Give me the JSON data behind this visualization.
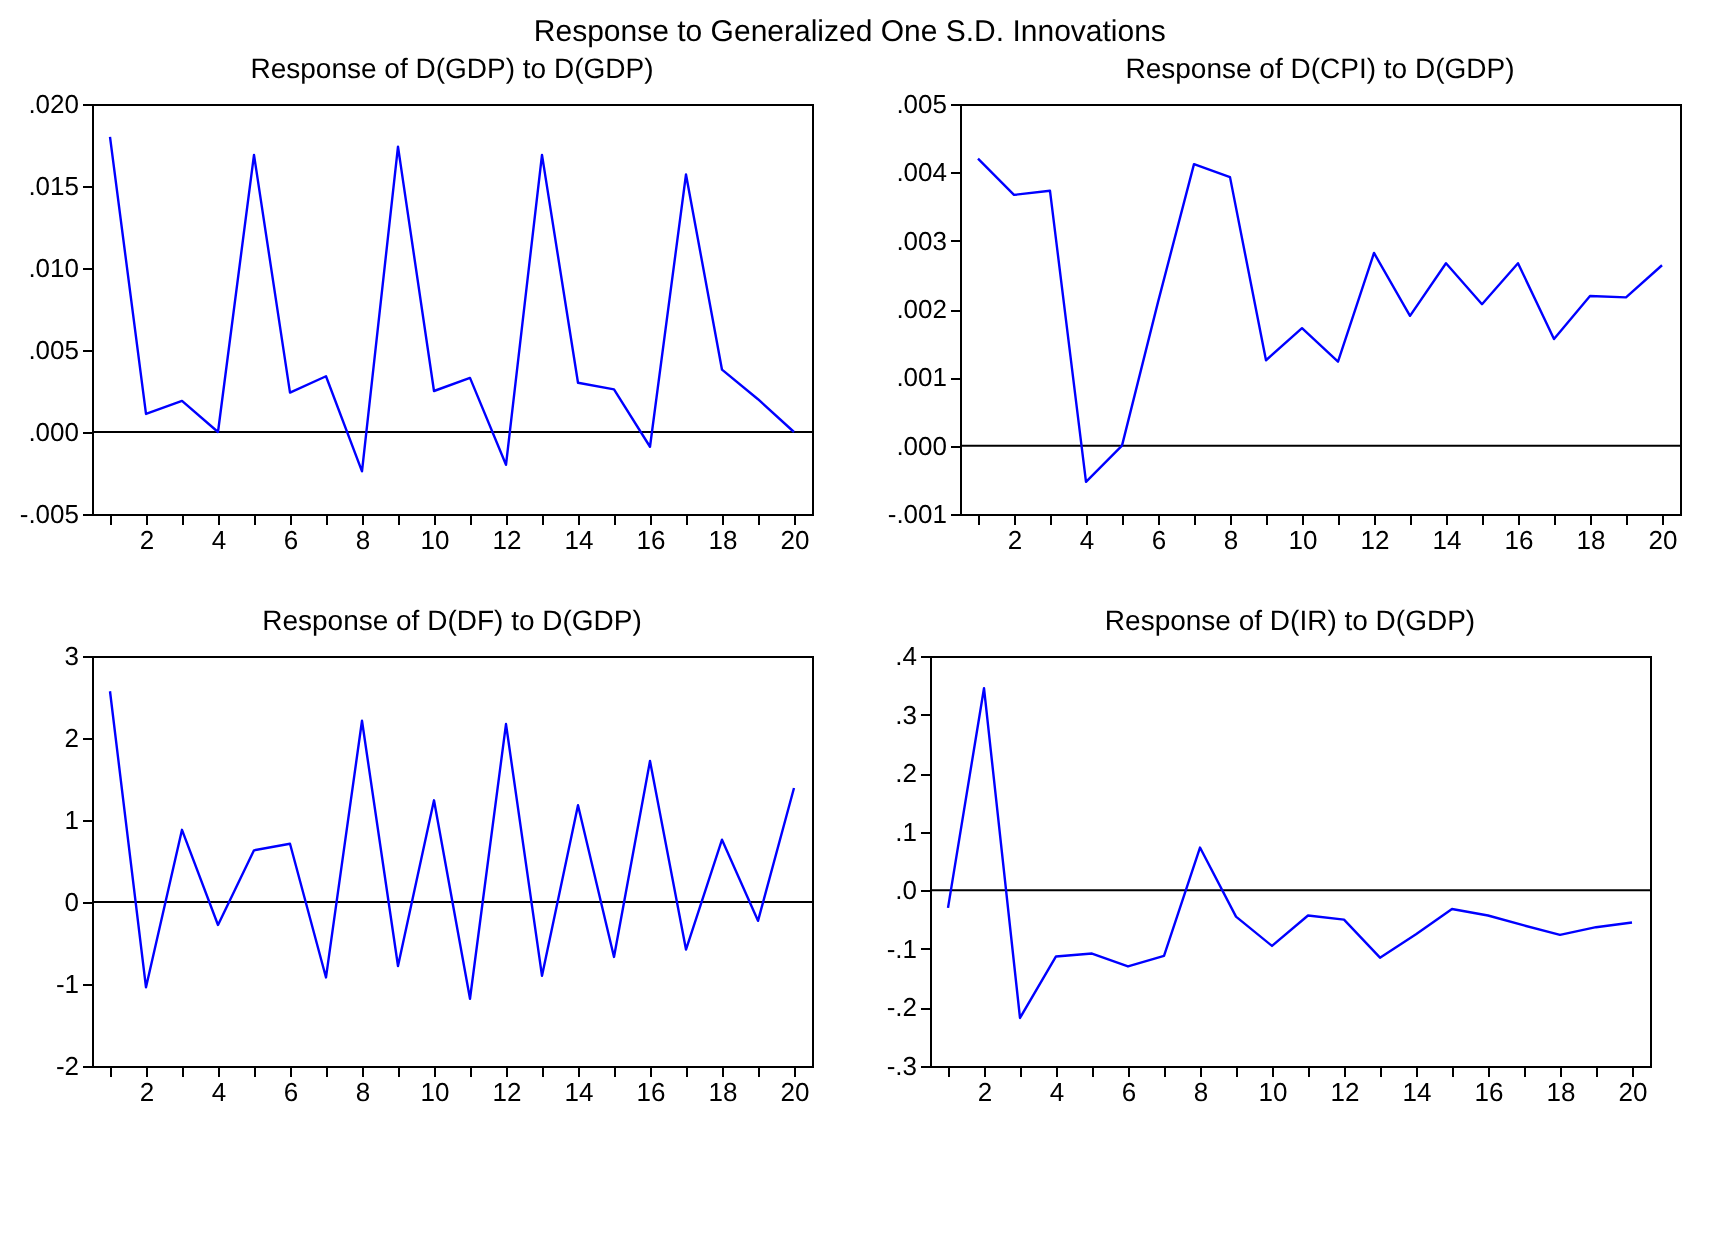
{
  "chart_data": [
    {
      "type": "line",
      "title": "Response of D(GDP) to D(GDP)",
      "annotations": [
        "Response to Generalized One S.D. Innovations"
      ],
      "x": [
        1,
        2,
        3,
        4,
        5,
        6,
        7,
        8,
        9,
        10,
        11,
        12,
        13,
        14,
        15,
        16,
        17,
        18,
        19,
        20
      ],
      "series": [
        {
          "color": "#0000ff",
          "values": [
            0.018,
            0.0011,
            0.0019,
            0.0,
            0.0169,
            0.0024,
            0.0034,
            -0.0024,
            0.0174,
            0.0025,
            0.0033,
            -0.002,
            0.0169,
            0.003,
            0.0026,
            -0.0009,
            0.0157,
            0.0038,
            0.002,
            0.0
          ]
        }
      ],
      "xlim": [
        0.5,
        20.5
      ],
      "xticks": [
        {
          "value": 1,
          "label": null
        },
        2,
        {
          "value": 3,
          "label": null
        },
        4,
        {
          "value": 5,
          "label": null
        },
        6,
        {
          "value": 7,
          "label": null
        },
        8,
        {
          "value": 9,
          "label": null
        },
        10,
        {
          "value": 11,
          "label": null
        },
        12,
        {
          "value": 13,
          "label": null
        },
        14,
        {
          "value": 15,
          "label": null
        },
        16,
        {
          "value": 17,
          "label": null
        },
        18,
        {
          "value": 19,
          "label": null
        },
        20
      ],
      "ylim": [
        -0.005,
        0.02
      ],
      "yticks": [
        {
          "value": -0.005,
          "label": "-.005"
        },
        {
          "value": 0,
          "label": ".000"
        },
        {
          "value": 0.005,
          "label": ".005"
        },
        {
          "value": 0.01,
          "label": ".010"
        },
        {
          "value": 0.015,
          "label": ".015"
        },
        {
          "value": 0.02,
          "label": ".020"
        }
      ],
      "ref_lines": [
        {
          "axis": "y",
          "value": 0,
          "color": "#000000"
        }
      ],
      "grid": false,
      "marker": "none",
      "line_style": "solid"
    },
    {
      "type": "line",
      "title": "Response of D(CPI) to D(GDP)",
      "x": [
        1,
        2,
        3,
        4,
        5,
        6,
        7,
        8,
        9,
        10,
        11,
        12,
        13,
        14,
        15,
        16,
        17,
        18,
        19,
        20
      ],
      "series": [
        {
          "color": "#0000ff",
          "values": [
            0.0042,
            0.00367,
            0.00373,
            -0.00053,
            0.0,
            0.0021,
            0.00412,
            0.00393,
            0.00125,
            0.00172,
            0.00123,
            0.00282,
            0.0019,
            0.00267,
            0.00207,
            0.00267,
            0.00156,
            0.00219,
            0.00217,
            0.00264
          ]
        }
      ],
      "xlim": [
        0.5,
        20.5
      ],
      "xticks": [
        {
          "value": 1,
          "label": null
        },
        2,
        {
          "value": 3,
          "label": null
        },
        4,
        {
          "value": 5,
          "label": null
        },
        6,
        {
          "value": 7,
          "label": null
        },
        8,
        {
          "value": 9,
          "label": null
        },
        10,
        {
          "value": 11,
          "label": null
        },
        12,
        {
          "value": 13,
          "label": null
        },
        14,
        {
          "value": 15,
          "label": null
        },
        16,
        {
          "value": 17,
          "label": null
        },
        18,
        {
          "value": 19,
          "label": null
        },
        20
      ],
      "ylim": [
        -0.001,
        0.005
      ],
      "yticks": [
        {
          "value": -0.001,
          "label": "-.001"
        },
        {
          "value": 0,
          "label": ".000"
        },
        {
          "value": 0.001,
          "label": ".001"
        },
        {
          "value": 0.002,
          "label": ".002"
        },
        {
          "value": 0.003,
          "label": ".003"
        },
        {
          "value": 0.004,
          "label": ".004"
        },
        {
          "value": 0.005,
          "label": ".005"
        }
      ],
      "ref_lines": [
        {
          "axis": "y",
          "value": 0,
          "color": "#000000"
        }
      ],
      "grid": false,
      "marker": "none",
      "line_style": "solid"
    },
    {
      "type": "line",
      "title": "Response of D(DF) to D(GDP)",
      "x": [
        1,
        2,
        3,
        4,
        5,
        6,
        7,
        8,
        9,
        10,
        11,
        12,
        13,
        14,
        15,
        16,
        17,
        18,
        19,
        20
      ],
      "series": [
        {
          "color": "#0000ff",
          "values": [
            2.57,
            -1.04,
            0.88,
            -0.28,
            0.63,
            0.71,
            -0.92,
            2.21,
            -0.78,
            1.24,
            -1.18,
            2.17,
            -0.9,
            1.18,
            -0.67,
            1.72,
            -0.58,
            0.76,
            -0.23,
            1.39
          ]
        }
      ],
      "xlim": [
        0.5,
        20.5
      ],
      "xticks": [
        {
          "value": 1,
          "label": null
        },
        2,
        {
          "value": 3,
          "label": null
        },
        4,
        {
          "value": 5,
          "label": null
        },
        6,
        {
          "value": 7,
          "label": null
        },
        8,
        {
          "value": 9,
          "label": null
        },
        10,
        {
          "value": 11,
          "label": null
        },
        12,
        {
          "value": 13,
          "label": null
        },
        14,
        {
          "value": 15,
          "label": null
        },
        16,
        {
          "value": 17,
          "label": null
        },
        18,
        {
          "value": 19,
          "label": null
        },
        20
      ],
      "ylim": [
        -2,
        3
      ],
      "yticks": [
        -2,
        -1,
        0,
        1,
        2,
        3
      ],
      "ref_lines": [
        {
          "axis": "y",
          "value": 0,
          "color": "#000000"
        }
      ],
      "grid": false,
      "marker": "none",
      "line_style": "solid"
    },
    {
      "type": "line",
      "title": "Response of D(IR) to D(GDP)",
      "x": [
        1,
        2,
        3,
        4,
        5,
        6,
        7,
        8,
        9,
        10,
        11,
        12,
        13,
        14,
        15,
        16,
        17,
        18,
        19,
        20
      ],
      "series": [
        {
          "color": "#0000ff",
          "values": [
            -0.03,
            0.345,
            -0.218,
            -0.113,
            -0.108,
            -0.13,
            -0.112,
            0.073,
            -0.045,
            -0.095,
            -0.043,
            -0.05,
            -0.115,
            -0.075,
            -0.032,
            -0.043,
            -0.06,
            -0.076,
            -0.063,
            -0.055
          ]
        }
      ],
      "xlim": [
        0.5,
        20.5
      ],
      "xticks": [
        {
          "value": 1,
          "label": null
        },
        2,
        {
          "value": 3,
          "label": null
        },
        4,
        {
          "value": 5,
          "label": null
        },
        6,
        {
          "value": 7,
          "label": null
        },
        8,
        {
          "value": 9,
          "label": null
        },
        10,
        {
          "value": 11,
          "label": null
        },
        12,
        {
          "value": 13,
          "label": null
        },
        14,
        {
          "value": 15,
          "label": null
        },
        16,
        {
          "value": 17,
          "label": null
        },
        18,
        {
          "value": 19,
          "label": null
        },
        20
      ],
      "ylim": [
        -0.3,
        0.4
      ],
      "yticks": [
        {
          "value": -0.3,
          "label": "-.3"
        },
        {
          "value": -0.2,
          "label": "-.2"
        },
        {
          "value": -0.1,
          "label": "-.1"
        },
        {
          "value": 0,
          "label": ".0"
        },
        {
          "value": 0.1,
          "label": ".1"
        },
        {
          "value": 0.2,
          "label": ".2"
        },
        {
          "value": 0.3,
          "label": ".3"
        },
        {
          "value": 0.4,
          "label": ".4"
        }
      ],
      "ref_lines": [
        {
          "axis": "y",
          "value": 0,
          "color": "#000000"
        }
      ],
      "grid": false,
      "marker": "none",
      "line_style": "solid"
    }
  ]
}
